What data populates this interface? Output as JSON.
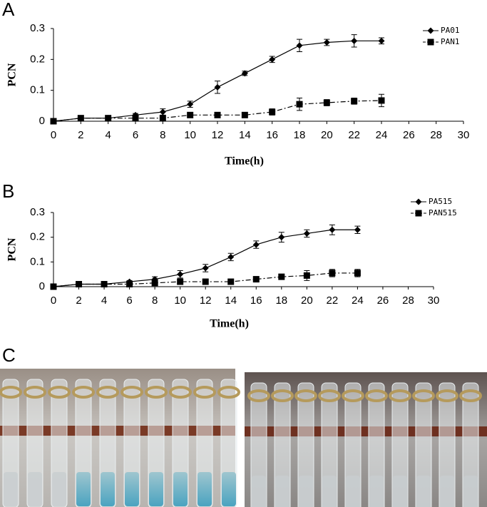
{
  "panel_labels": [
    "A",
    "B",
    "C"
  ],
  "chart_data": [
    {
      "type": "line",
      "x_label": "Time(h)",
      "y_label": "PCN",
      "x": [
        0,
        2,
        4,
        6,
        8,
        10,
        12,
        14,
        16,
        18,
        20,
        22,
        24
      ],
      "series": [
        {
          "name": "PA01",
          "color": "#000000",
          "marker": "diamond",
          "line_style": "solid",
          "values": [
            0,
            0.01,
            0.01,
            0.02,
            0.03,
            0.055,
            0.11,
            0.155,
            0.2,
            0.245,
            0.255,
            0.26,
            0.26
          ],
          "errors": [
            0,
            0,
            0,
            0.005,
            0.01,
            0.01,
            0.02,
            0.007,
            0.01,
            0.02,
            0.01,
            0.02,
            0.01
          ]
        },
        {
          "name": "PAN1",
          "color": "#000000",
          "marker": "square",
          "line_style": "dashed",
          "values": [
            0,
            0.01,
            0.01,
            0.01,
            0.01,
            0.02,
            0.02,
            0.02,
            0.03,
            0.055,
            0.06,
            0.065,
            0.067
          ],
          "errors": [
            0,
            0,
            0,
            0,
            0,
            0.005,
            0.005,
            0.005,
            0.01,
            0.02,
            0.01,
            0.01,
            0.02
          ]
        }
      ],
      "xlim": [
        0,
        30
      ],
      "xticks": [
        0,
        2,
        4,
        6,
        8,
        10,
        12,
        14,
        16,
        18,
        20,
        22,
        24,
        26,
        28,
        30
      ],
      "ylim": [
        0,
        0.3
      ],
      "yticks": [
        0,
        0.1,
        0.2,
        0.3
      ],
      "grid": false,
      "legend": "upper right"
    },
    {
      "type": "line",
      "x_label": "Time(h)",
      "y_label": "PCN",
      "x": [
        0,
        2,
        4,
        6,
        8,
        10,
        12,
        14,
        16,
        18,
        20,
        22,
        24
      ],
      "series": [
        {
          "name": "PA515",
          "color": "#000000",
          "marker": "diamond",
          "line_style": "solid",
          "values": [
            0,
            0.01,
            0.01,
            0.02,
            0.03,
            0.05,
            0.075,
            0.12,
            0.17,
            0.2,
            0.215,
            0.23,
            0.23
          ],
          "errors": [
            0,
            0,
            0,
            0.005,
            0.01,
            0.015,
            0.015,
            0.015,
            0.015,
            0.02,
            0.015,
            0.02,
            0.015
          ]
        },
        {
          "name": "PAN515",
          "color": "#000000",
          "marker": "square",
          "line_style": "dashed",
          "values": [
            0,
            0.01,
            0.01,
            0.01,
            0.015,
            0.02,
            0.02,
            0.02,
            0.03,
            0.04,
            0.045,
            0.055,
            0.055
          ],
          "errors": [
            0,
            0,
            0,
            0,
            0,
            0,
            0,
            0,
            0.01,
            0.01,
            0.02,
            0.015,
            0.015
          ]
        }
      ],
      "xlim": [
        0,
        30
      ],
      "xticks": [
        0,
        2,
        4,
        6,
        8,
        10,
        12,
        14,
        16,
        18,
        20,
        22,
        24,
        26,
        28,
        30
      ],
      "ylim": [
        0,
        0.3
      ],
      "yticks": [
        0,
        0.1,
        0.2,
        0.3
      ],
      "grid": false,
      "legend": "upper right"
    }
  ]
}
